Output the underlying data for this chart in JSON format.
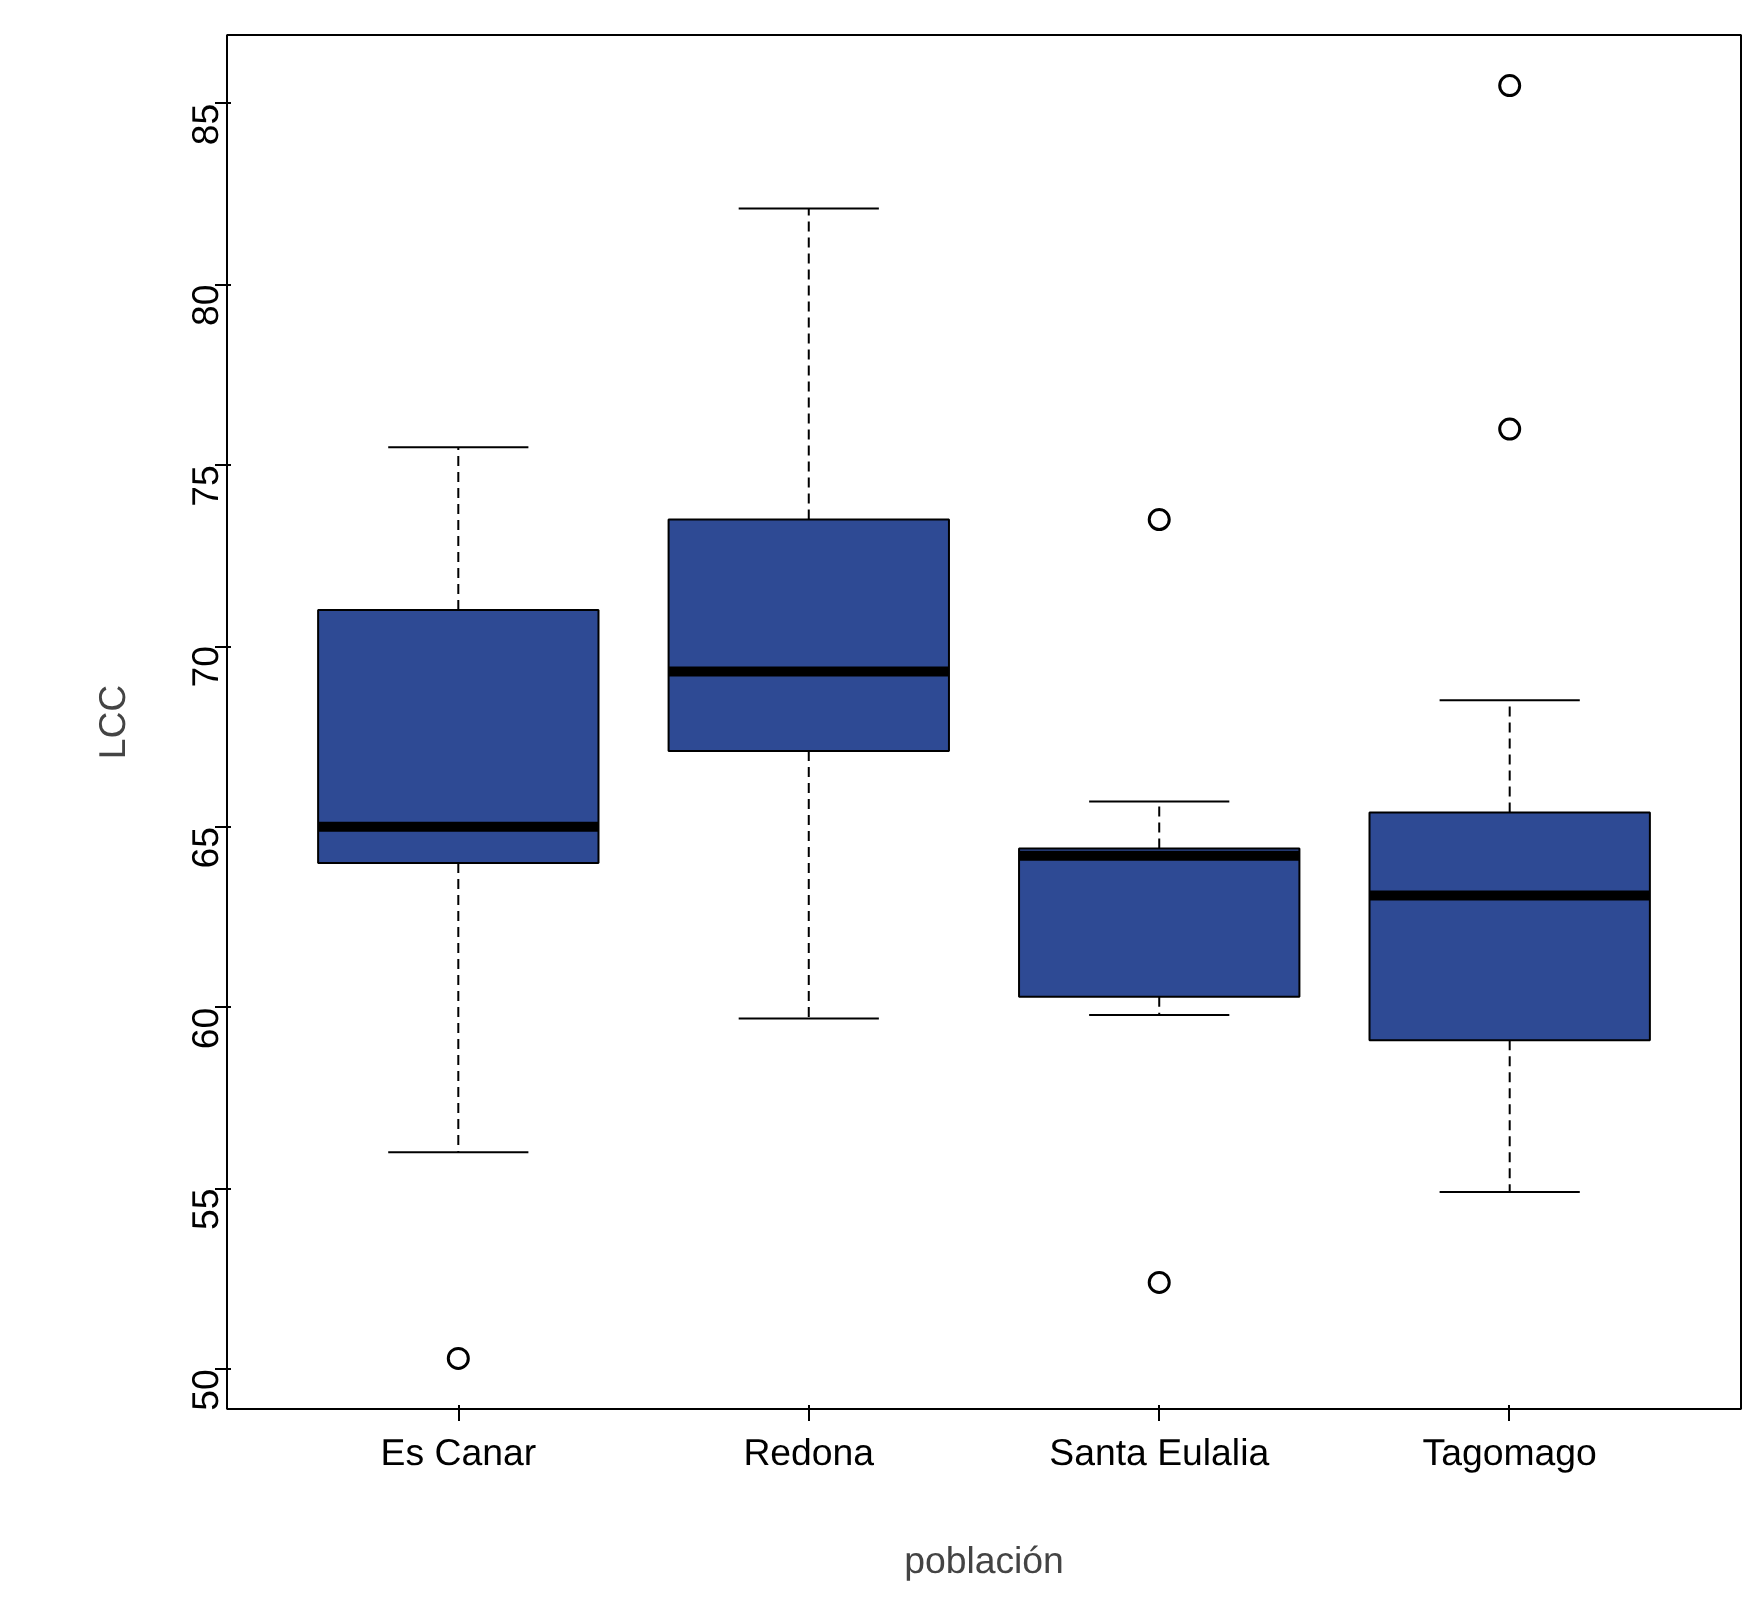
{
  "chart_data": {
    "type": "box",
    "xlabel": "población",
    "ylabel": "LCC",
    "color": "#2e4a94",
    "categories": [
      "Es Canar",
      "Redona",
      "Santa Eulalia",
      "Tagomago"
    ],
    "boxes": [
      {
        "low": 56.0,
        "q1": 64.0,
        "median": 65.0,
        "q3": 71.0,
        "high": 75.5,
        "outliers": [
          50.3
        ]
      },
      {
        "low": 59.7,
        "q1": 67.1,
        "median": 69.3,
        "q3": 73.5,
        "high": 82.1
      },
      {
        "low": 59.8,
        "q1": 60.3,
        "median": 64.2,
        "q3": 64.4,
        "high": 65.7,
        "outliers": [
          73.5,
          52.4
        ]
      },
      {
        "low": 54.9,
        "q1": 59.1,
        "median": 63.1,
        "q3": 65.4,
        "high": 68.5,
        "outliers": [
          76.0,
          85.5
        ]
      }
    ],
    "ylim": [
      48.9,
      86.9
    ],
    "yticks": [
      50,
      55,
      60,
      65,
      70,
      75,
      80,
      85
    ]
  }
}
